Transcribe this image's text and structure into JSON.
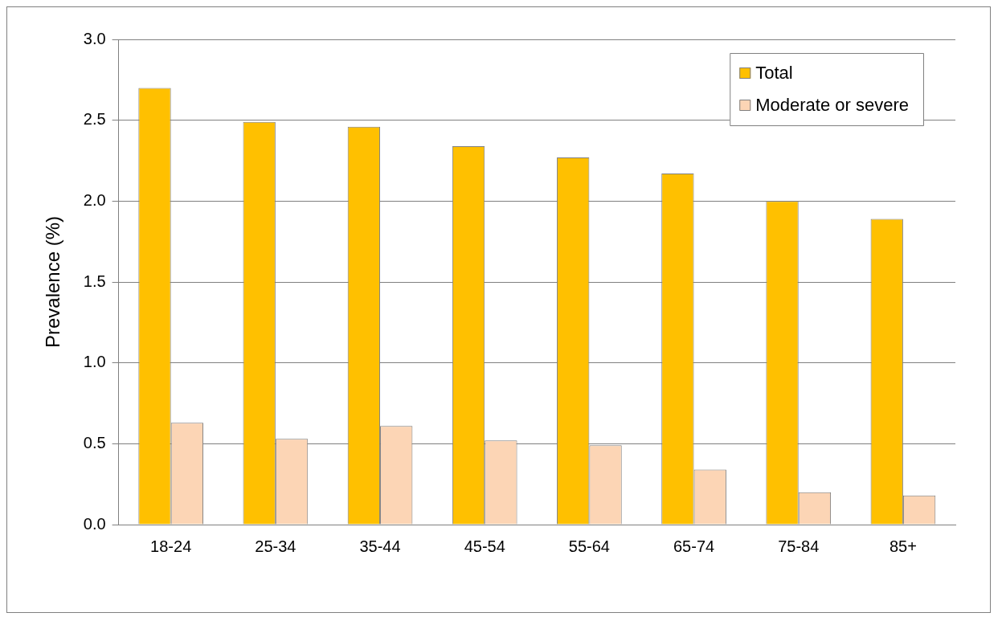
{
  "chart_data": {
    "type": "bar",
    "ylabel": "Prevalence (%)",
    "categories": [
      "18-24",
      "25-34",
      "35-44",
      "45-54",
      "55-64",
      "65-74",
      "75-84",
      "85+"
    ],
    "series": [
      {
        "name": "Total",
        "color": "#ffc000",
        "values": [
          2.7,
          2.49,
          2.46,
          2.34,
          2.27,
          2.17,
          2.0,
          1.89
        ]
      },
      {
        "name": "Moderate or severe",
        "color": "#fcd5b5",
        "values": [
          0.63,
          0.53,
          0.61,
          0.52,
          0.49,
          0.34,
          0.2,
          0.18
        ]
      }
    ],
    "ylim": [
      0,
      3
    ],
    "yticks": [
      {
        "value": 0,
        "label": "0.0"
      },
      0.5,
      {
        "value": 1,
        "label": "1.0"
      },
      1.5,
      {
        "value": 2,
        "label": "2.0"
      },
      2.5,
      {
        "value": 3,
        "label": "3.0"
      }
    ],
    "grid": "y",
    "legend": "top right"
  }
}
